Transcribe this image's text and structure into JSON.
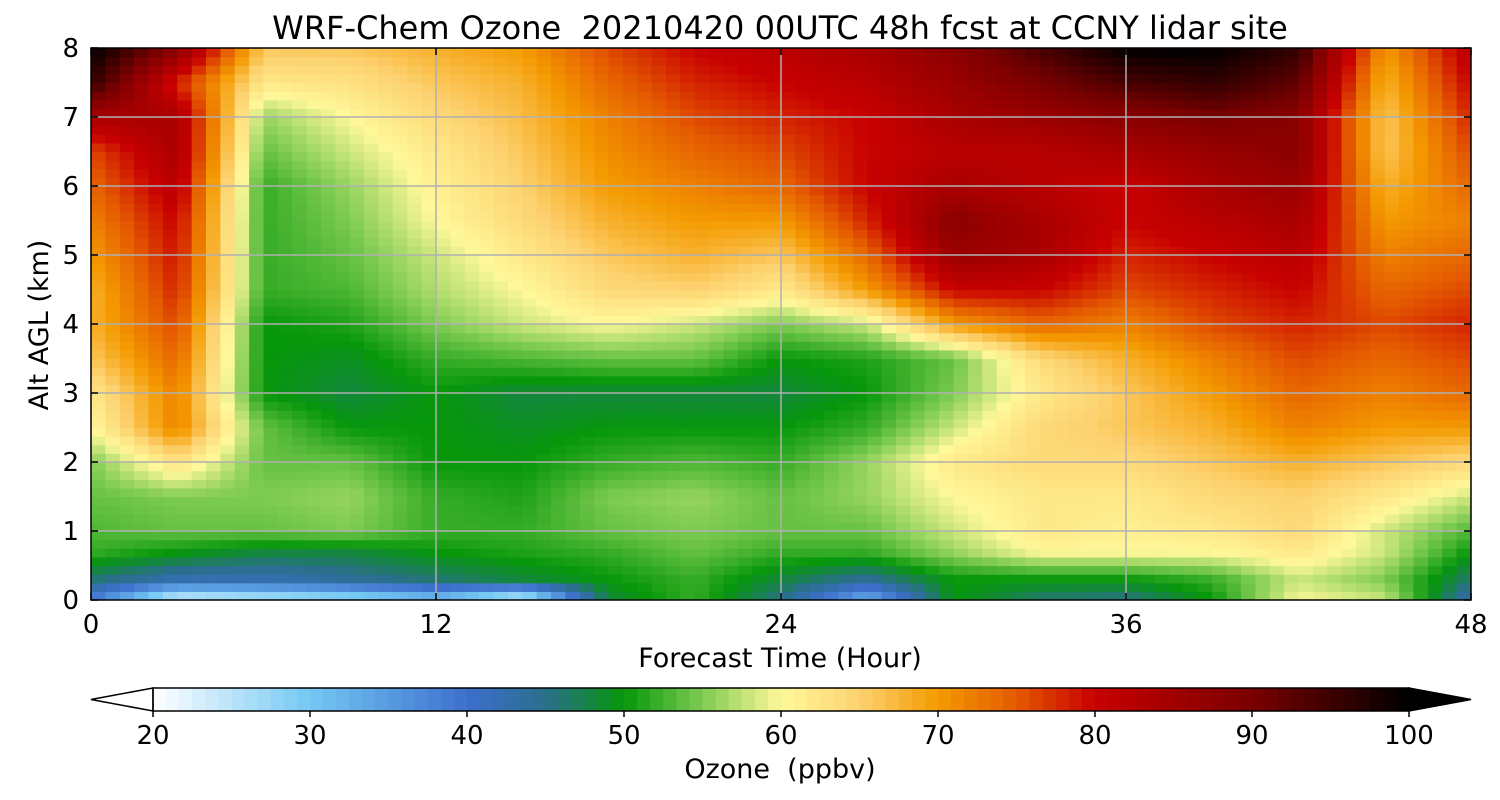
{
  "title": "WRF-Chem Ozone  20210420 00UTC 48h fcst at CCNY lidar site",
  "chart_data": {
    "type": "heatmap",
    "title": "WRF-Chem Ozone  20210420 00UTC 48h fcst at CCNY lidar site",
    "xlabel": "Forecast Time (Hour)",
    "ylabel": "Alt AGL (km)",
    "xlim": [
      0,
      48
    ],
    "ylim": [
      0,
      8
    ],
    "x_ticks": [
      0,
      12,
      24,
      36,
      48
    ],
    "y_ticks": [
      0,
      1,
      2,
      3,
      4,
      5,
      6,
      7,
      8
    ],
    "grid": true,
    "x": [
      0,
      3,
      6,
      9,
      12,
      15,
      18,
      21,
      24,
      27,
      30,
      33,
      36,
      39,
      42,
      45,
      48
    ],
    "y": [
      0,
      0.3,
      0.7,
      1,
      1.5,
      2,
      2.5,
      3,
      3.5,
      4,
      4.5,
      5,
      5.5,
      6,
      6.5,
      7,
      7.5,
      8
    ],
    "z": [
      [
        38,
        22,
        24,
        26,
        30,
        22,
        48,
        52,
        45,
        32,
        50,
        46,
        45,
        50,
        60,
        58,
        42
      ],
      [
        46,
        42,
        42,
        44,
        46,
        48,
        50,
        52,
        48,
        44,
        50,
        50,
        50,
        52,
        58,
        55,
        46
      ],
      [
        52,
        50,
        48,
        48,
        50,
        51,
        52,
        54,
        52,
        52,
        56,
        60,
        60,
        60,
        62,
        58,
        50
      ],
      [
        53,
        54,
        54,
        55,
        52,
        52,
        54,
        55,
        54,
        54,
        58,
        62,
        61,
        62,
        64,
        58,
        53
      ],
      [
        54,
        55,
        55,
        56,
        52,
        51,
        55,
        56,
        54,
        56,
        60,
        62,
        62,
        64,
        65,
        62,
        58
      ],
      [
        55,
        63,
        54,
        54,
        50,
        50,
        52,
        53,
        52,
        56,
        62,
        64,
        64,
        66,
        68,
        66,
        64
      ],
      [
        60,
        72,
        54,
        50,
        50,
        49,
        50,
        50,
        50,
        52,
        58,
        64,
        66,
        68,
        72,
        70,
        70
      ],
      [
        62,
        72,
        50,
        48,
        50,
        48,
        48,
        48,
        48,
        50,
        55,
        62,
        66,
        70,
        74,
        72,
        74
      ],
      [
        66,
        74,
        50,
        49,
        52,
        53,
        54,
        54,
        50,
        51,
        54,
        64,
        68,
        72,
        76,
        74,
        76
      ],
      [
        68,
        76,
        50,
        51,
        55,
        58,
        60,
        58,
        55,
        58,
        70,
        74,
        72,
        76,
        78,
        76,
        78
      ],
      [
        68,
        78,
        52,
        53,
        57,
        60,
        64,
        65,
        62,
        70,
        80,
        80,
        76,
        78,
        80,
        74,
        76
      ],
      [
        70,
        79,
        52,
        54,
        58,
        62,
        66,
        68,
        66,
        74,
        86,
        84,
        78,
        80,
        82,
        72,
        74
      ],
      [
        72,
        80,
        52,
        55,
        60,
        64,
        68,
        70,
        70,
        78,
        88,
        84,
        80,
        82,
        84,
        70,
        72
      ],
      [
        74,
        82,
        52,
        56,
        61,
        65,
        70,
        72,
        74,
        80,
        84,
        82,
        80,
        84,
        86,
        68,
        74
      ],
      [
        76,
        84,
        54,
        58,
        62,
        66,
        71,
        74,
        76,
        80,
        82,
        82,
        84,
        86,
        88,
        66,
        76
      ],
      [
        84,
        84,
        56,
        60,
        64,
        67,
        72,
        76,
        78,
        80,
        84,
        86,
        88,
        90,
        88,
        66,
        78
      ],
      [
        96,
        78,
        62,
        63,
        66,
        68,
        74,
        78,
        80,
        82,
        86,
        90,
        94,
        96,
        92,
        68,
        80
      ],
      [
        100,
        88,
        66,
        66,
        68,
        70,
        76,
        80,
        82,
        84,
        88,
        94,
        100,
        100,
        96,
        70,
        82
      ]
    ],
    "colorbar": {
      "label": "Ozone  (ppbv)",
      "ticks": [
        20,
        30,
        40,
        50,
        60,
        70,
        80,
        90,
        100
      ],
      "min": 20,
      "max": 100,
      "extend": "both",
      "stops": [
        {
          "v": 20,
          "c": "#ffffff"
        },
        {
          "v": 30,
          "c": "#74c8f4"
        },
        {
          "v": 40,
          "c": "#3d6fcc"
        },
        {
          "v": 45,
          "c": "#2a6f8c"
        },
        {
          "v": 50,
          "c": "#06970a"
        },
        {
          "v": 55,
          "c": "#7ecb52"
        },
        {
          "v": 60,
          "c": "#fff89a"
        },
        {
          "v": 65,
          "c": "#fdd270"
        },
        {
          "v": 70,
          "c": "#f49a00"
        },
        {
          "v": 75,
          "c": "#e45a00"
        },
        {
          "v": 80,
          "c": "#c80000"
        },
        {
          "v": 90,
          "c": "#7a0000"
        },
        {
          "v": 100,
          "c": "#000000"
        }
      ]
    }
  }
}
